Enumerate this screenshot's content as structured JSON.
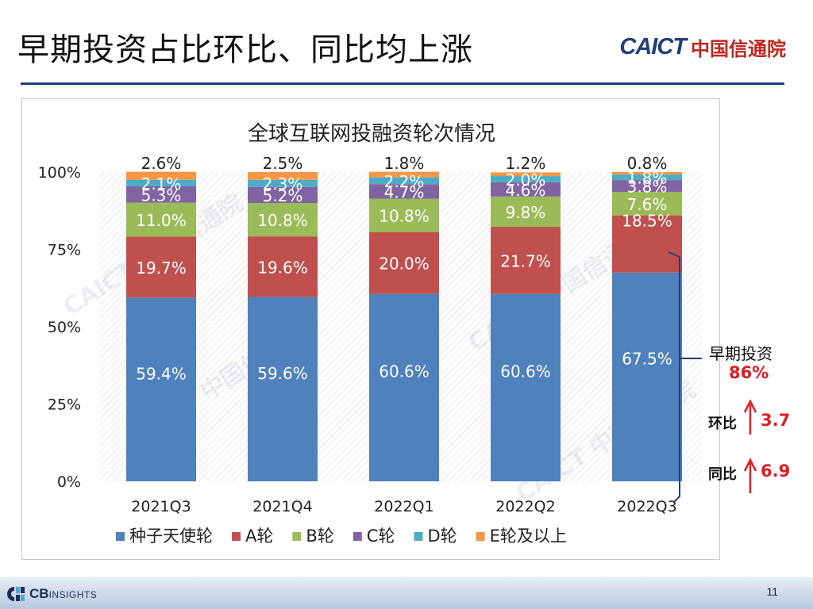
{
  "page": {
    "title": "早期投资占比环比、同比均上涨",
    "logo_en": "CAICT",
    "logo_cn": "中国信通院",
    "page_number": "11",
    "footer_logo_main": "CB",
    "footer_logo_sub": "INSIGHTS"
  },
  "side_panel": {
    "early_label": "早期投资",
    "early_value": "86%",
    "qoq_label": "环比",
    "qoq_value": "3.7",
    "yoy_label": "同比",
    "yoy_value": "6.9"
  },
  "watermark": "CAICT 中国信通院",
  "colors": {
    "seed": "#4f81bd",
    "a": "#c0504d",
    "b": "#9bbb59",
    "c": "#8064a2",
    "d": "#4bacc6",
    "e": "#f79646",
    "accent_red": "#e31b23",
    "navy": "#1f3f7a"
  },
  "chart_data": {
    "type": "bar",
    "stacked": true,
    "percent_stacked": true,
    "title": "全球互联网投融资轮次情况",
    "categories": [
      "2021Q3",
      "2021Q4",
      "2022Q1",
      "2022Q2",
      "2022Q3"
    ],
    "series": [
      {
        "name": "种子天使轮",
        "values": [
          59.4,
          59.6,
          60.6,
          60.6,
          67.5
        ],
        "labels": [
          "59.4%",
          "59.6%",
          "60.6%",
          "60.6%",
          "67.5%"
        ],
        "color": "#4f81bd"
      },
      {
        "name": "A轮",
        "values": [
          19.7,
          19.6,
          20.0,
          21.7,
          18.5
        ],
        "labels": [
          "19.7%",
          "19.6%",
          "20.0%",
          "21.7%",
          "18.5%"
        ],
        "color": "#c0504d"
      },
      {
        "name": "B轮",
        "values": [
          11.0,
          10.8,
          10.8,
          9.8,
          7.6
        ],
        "labels": [
          "11.0%",
          "10.8%",
          "10.8%",
          "9.8%",
          "7.6%"
        ],
        "color": "#9bbb59"
      },
      {
        "name": "C轮",
        "values": [
          5.3,
          5.2,
          4.7,
          4.6,
          3.8
        ],
        "labels": [
          "5.3%",
          "5.2%",
          "4.7%",
          "4.6%",
          "3.8%"
        ],
        "color": "#8064a2"
      },
      {
        "name": "D轮",
        "values": [
          2.1,
          2.3,
          2.2,
          2.0,
          1.8
        ],
        "labels": [
          "2.1%",
          "2.3%",
          "2.2%",
          "2.0%",
          "1.8%"
        ],
        "color": "#4bacc6"
      },
      {
        "name": "E轮及以上",
        "values": [
          2.6,
          2.5,
          1.8,
          1.2,
          0.8
        ],
        "labels": [
          "2.6%",
          "2.5%",
          "1.8%",
          "1.2%",
          "0.8%"
        ],
        "color": "#f79646"
      }
    ],
    "yticks": [
      "0%",
      "25%",
      "50%",
      "75%",
      "100%"
    ],
    "ylim": [
      0,
      100
    ],
    "grid": false,
    "legend_position": "bottom"
  }
}
